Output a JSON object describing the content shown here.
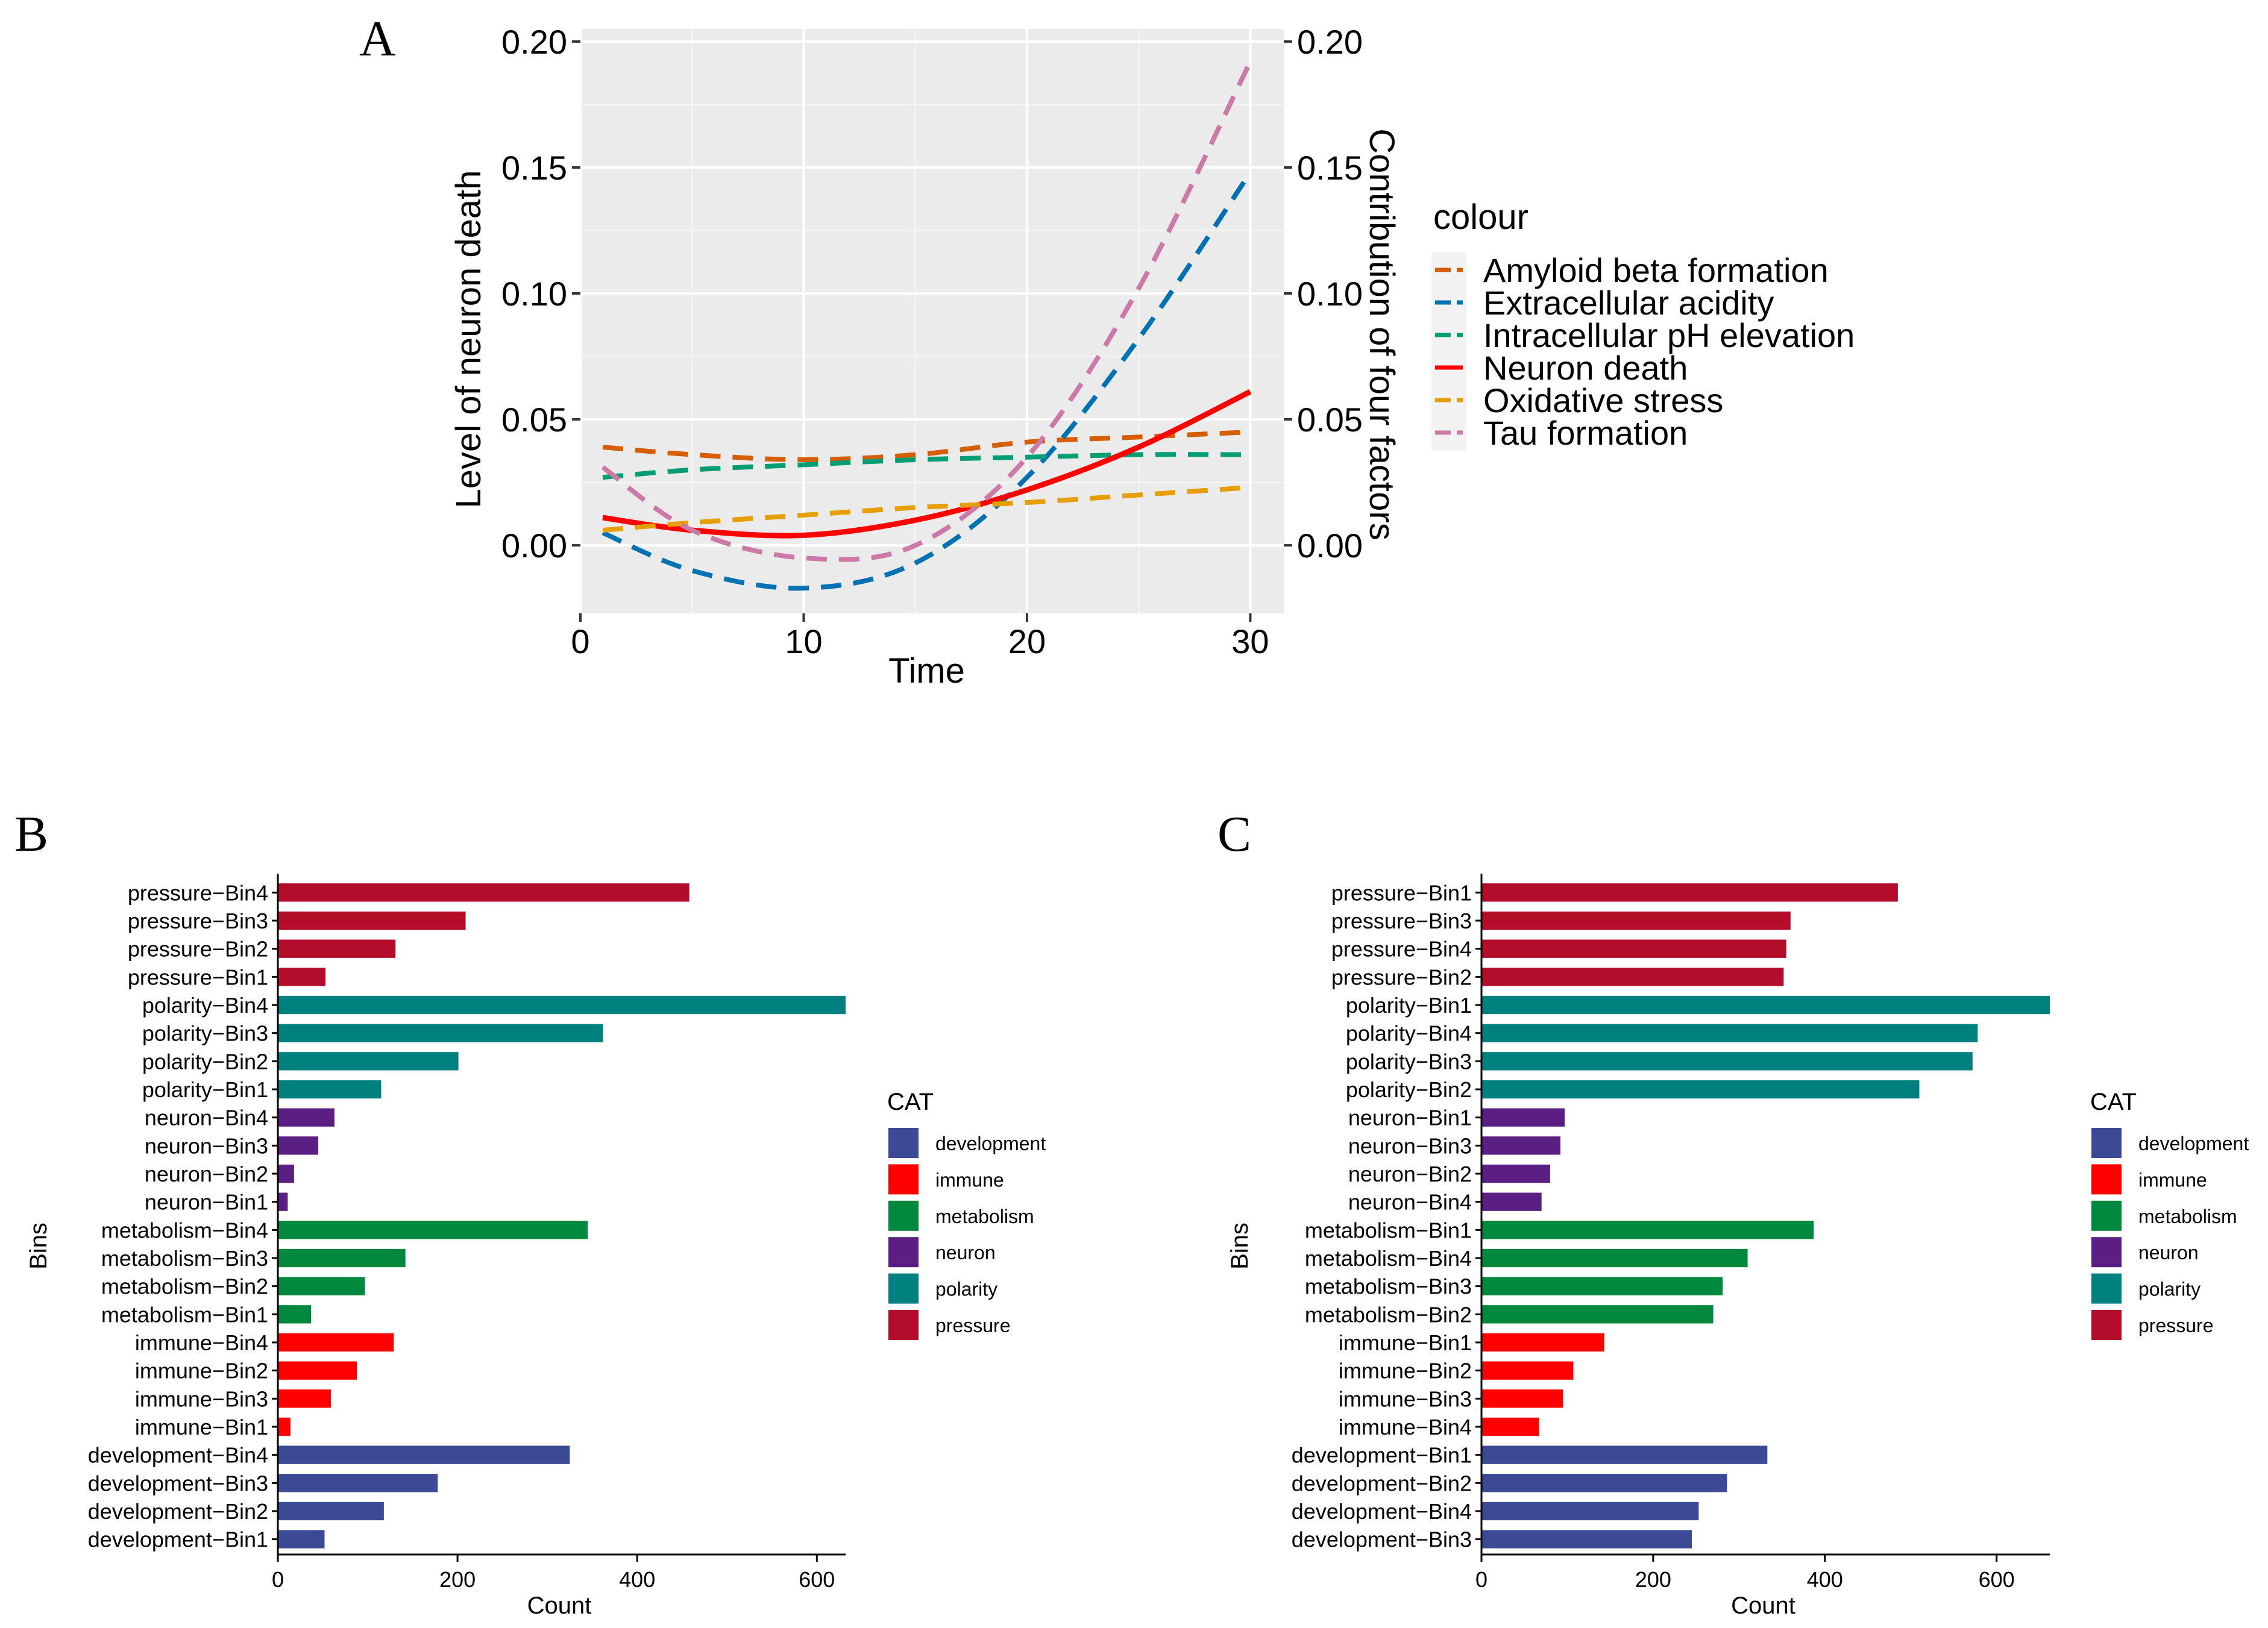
{
  "panels": {
    "a": {
      "letter": "A"
    },
    "b": {
      "letter": "B"
    },
    "c": {
      "letter": "C"
    }
  },
  "chart_data": [
    {
      "id": "A",
      "type": "line",
      "xlabel": "Time",
      "ylabel": "Level of neuron death",
      "y2label": "Contribution of four factors",
      "xlim": [
        0,
        31.5
      ],
      "ylim": [
        -0.027,
        0.205
      ],
      "xticks": [
        0,
        10,
        20,
        30
      ],
      "yticks": [
        0.0,
        0.05,
        0.1,
        0.15,
        0.2
      ],
      "ytick_labels": [
        "0.00",
        "0.05",
        "0.10",
        "0.15",
        "0.20"
      ],
      "y2ticks": [
        0.0,
        0.05,
        0.1,
        0.15,
        0.2
      ],
      "y2tick_labels": [
        "0.00",
        "0.05",
        "0.10",
        "0.15",
        "0.20"
      ],
      "grid": true,
      "legend": {
        "title": "colour",
        "position": "right",
        "entries": [
          "Amyloid beta formation",
          "Extracellular acidity",
          "Intracellular pH elevation",
          "Neuron death",
          "Oxidative stress",
          "Tau formation"
        ]
      },
      "series": [
        {
          "name": "Amyloid beta formation",
          "color": "#d55e00",
          "dash": true,
          "x": [
            1,
            5,
            10,
            15,
            20,
            25,
            30
          ],
          "y": [
            0.039,
            0.036,
            0.034,
            0.036,
            0.041,
            0.043,
            0.045
          ]
        },
        {
          "name": "Extracellular acidity",
          "color": "#0072b2",
          "dash": true,
          "x": [
            1,
            5,
            10,
            15,
            20,
            25,
            30
          ],
          "y": [
            0.005,
            -0.01,
            -0.017,
            -0.007,
            0.027,
            0.082,
            0.148
          ]
        },
        {
          "name": "Intracellular pH elevation",
          "color": "#009e73",
          "dash": true,
          "x": [
            1,
            5,
            10,
            15,
            20,
            25,
            30
          ],
          "y": [
            0.027,
            0.03,
            0.032,
            0.034,
            0.035,
            0.036,
            0.036
          ]
        },
        {
          "name": "Neuron death",
          "color": "#ff0000",
          "dash": false,
          "x": [
            1,
            5,
            10,
            15,
            20,
            25,
            30
          ],
          "y": [
            0.011,
            0.006,
            0.004,
            0.01,
            0.022,
            0.039,
            0.061
          ]
        },
        {
          "name": "Oxidative stress",
          "color": "#e69f00",
          "dash": true,
          "x": [
            1,
            5,
            10,
            15,
            20,
            25,
            30
          ],
          "y": [
            0.006,
            0.009,
            0.012,
            0.015,
            0.017,
            0.02,
            0.023
          ]
        },
        {
          "name": "Tau formation",
          "color": "#cc79a7",
          "dash": true,
          "x": [
            1,
            5,
            10,
            15,
            20,
            25,
            30
          ],
          "y": [
            0.031,
            0.006,
            -0.005,
            0.0,
            0.035,
            0.102,
            0.192
          ]
        }
      ]
    },
    {
      "id": "B",
      "type": "bar",
      "orientation": "horizontal",
      "xlabel": "Count",
      "ylabel": "Bins",
      "xlim": [
        0,
        632
      ],
      "xticks": [
        0,
        200,
        400,
        600
      ],
      "grid": false,
      "legend": {
        "title": "CAT",
        "position": "right",
        "entries": [
          "development",
          "immune",
          "metabolism",
          "neuron",
          "polarity",
          "pressure"
        ],
        "colors": [
          "#3c4a96",
          "#ff0000",
          "#00883e",
          "#5b1e82",
          "#00807f",
          "#b40d2c"
        ]
      },
      "categories": [
        "pressure−Bin4",
        "pressure−Bin3",
        "pressure−Bin2",
        "pressure−Bin1",
        "polarity−Bin4",
        "polarity−Bin3",
        "polarity−Bin2",
        "polarity−Bin1",
        "neuron−Bin4",
        "neuron−Bin3",
        "neuron−Bin2",
        "neuron−Bin1",
        "metabolism−Bin4",
        "metabolism−Bin3",
        "metabolism−Bin2",
        "metabolism−Bin1",
        "immune−Bin4",
        "immune−Bin2",
        "immune−Bin3",
        "immune−Bin1",
        "development−Bin4",
        "development−Bin3",
        "development−Bin2",
        "development−Bin1"
      ],
      "values": [
        458,
        209,
        131,
        53,
        632,
        362,
        201,
        115,
        63,
        45,
        18,
        11,
        345,
        142,
        97,
        37,
        129,
        88,
        59,
        14,
        325,
        178,
        118,
        52
      ],
      "category_group": [
        "pressure",
        "pressure",
        "pressure",
        "pressure",
        "polarity",
        "polarity",
        "polarity",
        "polarity",
        "neuron",
        "neuron",
        "neuron",
        "neuron",
        "metabolism",
        "metabolism",
        "metabolism",
        "metabolism",
        "immune",
        "immune",
        "immune",
        "immune",
        "development",
        "development",
        "development",
        "development"
      ]
    },
    {
      "id": "C",
      "type": "bar",
      "orientation": "horizontal",
      "xlabel": "Count",
      "ylabel": "Bins",
      "xlim": [
        0,
        662
      ],
      "xticks": [
        0,
        200,
        400,
        600
      ],
      "grid": false,
      "legend": {
        "title": "CAT",
        "position": "right",
        "entries": [
          "development",
          "immune",
          "metabolism",
          "neuron",
          "polarity",
          "pressure"
        ],
        "colors": [
          "#3c4a96",
          "#ff0000",
          "#00883e",
          "#5b1e82",
          "#00807f",
          "#b40d2c"
        ]
      },
      "categories": [
        "pressure−Bin1",
        "pressure−Bin3",
        "pressure−Bin4",
        "pressure−Bin2",
        "polarity−Bin1",
        "polarity−Bin4",
        "polarity−Bin3",
        "polarity−Bin2",
        "neuron−Bin1",
        "neuron−Bin3",
        "neuron−Bin2",
        "neuron−Bin4",
        "metabolism−Bin1",
        "metabolism−Bin4",
        "metabolism−Bin3",
        "metabolism−Bin2",
        "immune−Bin1",
        "immune−Bin2",
        "immune−Bin3",
        "immune−Bin4",
        "development−Bin1",
        "development−Bin2",
        "development−Bin4",
        "development−Bin3"
      ],
      "values": [
        485,
        360,
        355,
        352,
        662,
        578,
        572,
        510,
        97,
        92,
        80,
        70,
        387,
        310,
        281,
        270,
        143,
        107,
        95,
        67,
        333,
        286,
        253,
        245
      ],
      "category_group": [
        "pressure",
        "pressure",
        "pressure",
        "pressure",
        "polarity",
        "polarity",
        "polarity",
        "polarity",
        "neuron",
        "neuron",
        "neuron",
        "neuron",
        "metabolism",
        "metabolism",
        "metabolism",
        "metabolism",
        "immune",
        "immune",
        "immune",
        "immune",
        "development",
        "development",
        "development",
        "development"
      ]
    }
  ]
}
